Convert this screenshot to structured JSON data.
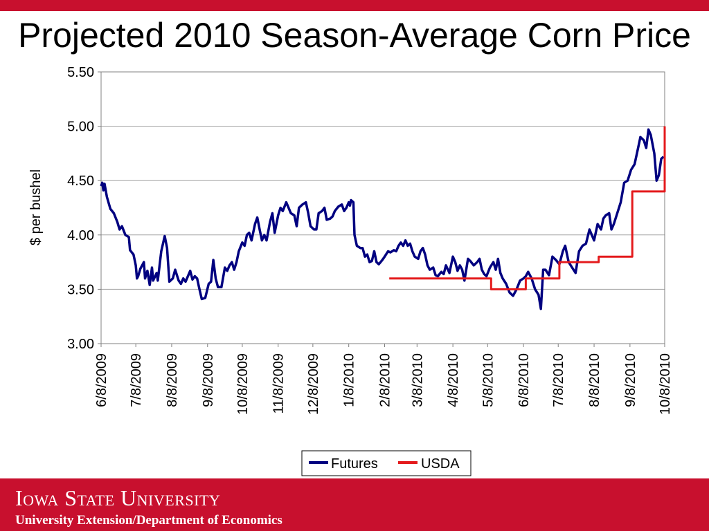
{
  "title": "Projected 2010 Season-Average Corn Price",
  "colors": {
    "brand_red": "#c8102e",
    "futures": "#000080",
    "usda": "#e41a1c"
  },
  "footer": {
    "university": "Iowa State University",
    "department": "University Extension/Department of Economics"
  },
  "chart_data": {
    "type": "line",
    "ylabel": "$ per bushel",
    "xlabel": "",
    "ylim": [
      3.0,
      5.5
    ],
    "yticks": [
      "3.00",
      "3.50",
      "4.00",
      "4.50",
      "5.00",
      "5.50"
    ],
    "xtick_labels": [
      "6/8/2009",
      "7/8/2009",
      "8/8/2009",
      "9/8/2009",
      "10/8/2009",
      "11/8/2009",
      "12/8/2009",
      "1/8/2010",
      "2/8/2010",
      "3/8/2010",
      "4/8/2010",
      "5/8/2010",
      "6/8/2010",
      "7/8/2010",
      "8/8/2010",
      "9/8/2010",
      "10/8/2010"
    ],
    "x_start": "2009-06-08",
    "x_end": "2010-10-08",
    "grid": "horizontal",
    "legend": "bottom",
    "series": [
      {
        "name": "Futures",
        "points": [
          [
            "2009-06-08",
            4.45
          ],
          [
            "2009-06-09",
            4.48
          ],
          [
            "2009-06-10",
            4.41
          ],
          [
            "2009-06-11",
            4.47
          ],
          [
            "2009-06-13",
            4.35
          ],
          [
            "2009-06-16",
            4.24
          ],
          [
            "2009-06-19",
            4.2
          ],
          [
            "2009-06-22",
            4.12
          ],
          [
            "2009-06-24",
            4.05
          ],
          [
            "2009-06-26",
            4.08
          ],
          [
            "2009-06-29",
            4.0
          ],
          [
            "2009-07-02",
            3.98
          ],
          [
            "2009-07-03",
            3.86
          ],
          [
            "2009-07-06",
            3.82
          ],
          [
            "2009-07-08",
            3.72
          ],
          [
            "2009-07-09",
            3.6
          ],
          [
            "2009-07-10",
            3.62
          ],
          [
            "2009-07-12",
            3.69
          ],
          [
            "2009-07-15",
            3.75
          ],
          [
            "2009-07-16",
            3.6
          ],
          [
            "2009-07-18",
            3.67
          ],
          [
            "2009-07-20",
            3.54
          ],
          [
            "2009-07-22",
            3.7
          ],
          [
            "2009-07-23",
            3.58
          ],
          [
            "2009-07-26",
            3.65
          ],
          [
            "2009-07-27",
            3.58
          ],
          [
            "2009-07-30",
            3.85
          ],
          [
            "2009-08-02",
            3.99
          ],
          [
            "2009-08-04",
            3.88
          ],
          [
            "2009-08-06",
            3.57
          ],
          [
            "2009-08-09",
            3.6
          ],
          [
            "2009-08-11",
            3.68
          ],
          [
            "2009-08-14",
            3.58
          ],
          [
            "2009-08-16",
            3.55
          ],
          [
            "2009-08-18",
            3.6
          ],
          [
            "2009-08-20",
            3.57
          ],
          [
            "2009-08-22",
            3.62
          ],
          [
            "2009-08-24",
            3.67
          ],
          [
            "2009-08-26",
            3.59
          ],
          [
            "2009-08-28",
            3.62
          ],
          [
            "2009-08-30",
            3.6
          ],
          [
            "2009-09-01",
            3.5
          ],
          [
            "2009-09-03",
            3.41
          ],
          [
            "2009-09-06",
            3.42
          ],
          [
            "2009-09-09",
            3.55
          ],
          [
            "2009-09-11",
            3.57
          ],
          [
            "2009-09-13",
            3.77
          ],
          [
            "2009-09-15",
            3.6
          ],
          [
            "2009-09-17",
            3.52
          ],
          [
            "2009-09-20",
            3.52
          ],
          [
            "2009-09-23",
            3.7
          ],
          [
            "2009-09-25",
            3.67
          ],
          [
            "2009-09-27",
            3.72
          ],
          [
            "2009-09-29",
            3.75
          ],
          [
            "2009-10-01",
            3.68
          ],
          [
            "2009-10-03",
            3.75
          ],
          [
            "2009-10-05",
            3.85
          ],
          [
            "2009-10-08",
            3.93
          ],
          [
            "2009-10-10",
            3.9
          ],
          [
            "2009-10-12",
            4.0
          ],
          [
            "2009-10-14",
            4.02
          ],
          [
            "2009-10-16",
            3.95
          ],
          [
            "2009-10-19",
            4.1
          ],
          [
            "2009-10-21",
            4.16
          ],
          [
            "2009-10-23",
            4.05
          ],
          [
            "2009-10-25",
            3.95
          ],
          [
            "2009-10-27",
            4.0
          ],
          [
            "2009-10-29",
            3.95
          ],
          [
            "2009-11-01",
            4.12
          ],
          [
            "2009-11-03",
            4.2
          ],
          [
            "2009-11-05",
            4.02
          ],
          [
            "2009-11-08",
            4.18
          ],
          [
            "2009-11-10",
            4.25
          ],
          [
            "2009-11-12",
            4.22
          ],
          [
            "2009-11-15",
            4.3
          ],
          [
            "2009-11-17",
            4.25
          ],
          [
            "2009-11-19",
            4.2
          ],
          [
            "2009-11-22",
            4.18
          ],
          [
            "2009-11-24",
            4.08
          ],
          [
            "2009-11-26",
            4.25
          ],
          [
            "2009-11-29",
            4.28
          ],
          [
            "2009-12-02",
            4.3
          ],
          [
            "2009-12-04",
            4.2
          ],
          [
            "2009-12-06",
            4.08
          ],
          [
            "2009-12-09",
            4.05
          ],
          [
            "2009-12-11",
            4.05
          ],
          [
            "2009-12-13",
            4.2
          ],
          [
            "2009-12-16",
            4.22
          ],
          [
            "2009-12-18",
            4.25
          ],
          [
            "2009-12-20",
            4.14
          ],
          [
            "2009-12-23",
            4.15
          ],
          [
            "2009-12-25",
            4.17
          ],
          [
            "2009-12-27",
            4.22
          ],
          [
            "2009-12-30",
            4.26
          ],
          [
            "2010-01-02",
            4.28
          ],
          [
            "2010-01-04",
            4.22
          ],
          [
            "2010-01-06",
            4.25
          ],
          [
            "2010-01-08",
            4.3
          ],
          [
            "2010-01-09",
            4.27
          ],
          [
            "2010-01-10",
            4.32
          ],
          [
            "2010-01-12",
            4.3
          ],
          [
            "2010-01-13",
            4.0
          ],
          [
            "2010-01-15",
            3.9
          ],
          [
            "2010-01-18",
            3.88
          ],
          [
            "2010-01-20",
            3.88
          ],
          [
            "2010-01-22",
            3.8
          ],
          [
            "2010-01-24",
            3.82
          ],
          [
            "2010-01-26",
            3.75
          ],
          [
            "2010-01-28",
            3.76
          ],
          [
            "2010-01-30",
            3.85
          ],
          [
            "2010-02-01",
            3.75
          ],
          [
            "2010-02-03",
            3.73
          ],
          [
            "2010-02-06",
            3.77
          ],
          [
            "2010-02-08",
            3.8
          ],
          [
            "2010-02-11",
            3.85
          ],
          [
            "2010-02-13",
            3.84
          ],
          [
            "2010-02-16",
            3.86
          ],
          [
            "2010-02-18",
            3.85
          ],
          [
            "2010-02-20",
            3.9
          ],
          [
            "2010-02-22",
            3.93
          ],
          [
            "2010-02-24",
            3.9
          ],
          [
            "2010-02-26",
            3.95
          ],
          [
            "2010-02-28",
            3.9
          ],
          [
            "2010-03-02",
            3.92
          ],
          [
            "2010-03-04",
            3.85
          ],
          [
            "2010-03-06",
            3.8
          ],
          [
            "2010-03-09",
            3.78
          ],
          [
            "2010-03-11",
            3.85
          ],
          [
            "2010-03-13",
            3.88
          ],
          [
            "2010-03-15",
            3.82
          ],
          [
            "2010-03-17",
            3.72
          ],
          [
            "2010-03-19",
            3.68
          ],
          [
            "2010-03-22",
            3.7
          ],
          [
            "2010-03-24",
            3.63
          ],
          [
            "2010-03-26",
            3.62
          ],
          [
            "2010-03-29",
            3.66
          ],
          [
            "2010-03-31",
            3.64
          ],
          [
            "2010-04-02",
            3.72
          ],
          [
            "2010-04-05",
            3.65
          ],
          [
            "2010-04-08",
            3.8
          ],
          [
            "2010-04-10",
            3.75
          ],
          [
            "2010-04-12",
            3.67
          ],
          [
            "2010-04-14",
            3.72
          ],
          [
            "2010-04-16",
            3.68
          ],
          [
            "2010-04-18",
            3.58
          ],
          [
            "2010-04-21",
            3.78
          ],
          [
            "2010-04-23",
            3.76
          ],
          [
            "2010-04-26",
            3.72
          ],
          [
            "2010-04-29",
            3.75
          ],
          [
            "2010-05-01",
            3.78
          ],
          [
            "2010-05-03",
            3.68
          ],
          [
            "2010-05-05",
            3.64
          ],
          [
            "2010-05-07",
            3.62
          ],
          [
            "2010-05-10",
            3.7
          ],
          [
            "2010-05-13",
            3.75
          ],
          [
            "2010-05-15",
            3.68
          ],
          [
            "2010-05-17",
            3.78
          ],
          [
            "2010-05-19",
            3.65
          ],
          [
            "2010-05-21",
            3.6
          ],
          [
            "2010-05-24",
            3.55
          ],
          [
            "2010-05-27",
            3.47
          ],
          [
            "2010-05-30",
            3.44
          ],
          [
            "2010-06-02",
            3.5
          ],
          [
            "2010-06-05",
            3.58
          ],
          [
            "2010-06-08",
            3.6
          ],
          [
            "2010-06-10",
            3.62
          ],
          [
            "2010-06-12",
            3.66
          ],
          [
            "2010-06-15",
            3.6
          ],
          [
            "2010-06-18",
            3.5
          ],
          [
            "2010-06-21",
            3.45
          ],
          [
            "2010-06-23",
            3.32
          ],
          [
            "2010-06-25",
            3.68
          ],
          [
            "2010-06-27",
            3.68
          ],
          [
            "2010-06-30",
            3.63
          ],
          [
            "2010-07-03",
            3.8
          ],
          [
            "2010-07-06",
            3.77
          ],
          [
            "2010-07-09",
            3.73
          ],
          [
            "2010-07-12",
            3.85
          ],
          [
            "2010-07-14",
            3.9
          ],
          [
            "2010-07-17",
            3.75
          ],
          [
            "2010-07-20",
            3.7
          ],
          [
            "2010-07-23",
            3.65
          ],
          [
            "2010-07-26",
            3.85
          ],
          [
            "2010-07-29",
            3.9
          ],
          [
            "2010-08-01",
            3.92
          ],
          [
            "2010-08-04",
            4.05
          ],
          [
            "2010-08-06",
            4.0
          ],
          [
            "2010-08-08",
            3.95
          ],
          [
            "2010-08-11",
            4.1
          ],
          [
            "2010-08-14",
            4.05
          ],
          [
            "2010-08-16",
            4.15
          ],
          [
            "2010-08-18",
            4.18
          ],
          [
            "2010-08-21",
            4.2
          ],
          [
            "2010-08-23",
            4.05
          ],
          [
            "2010-08-25",
            4.1
          ],
          [
            "2010-08-28",
            4.2
          ],
          [
            "2010-08-31",
            4.3
          ],
          [
            "2010-09-03",
            4.48
          ],
          [
            "2010-09-06",
            4.5
          ],
          [
            "2010-09-09",
            4.6
          ],
          [
            "2010-09-12",
            4.65
          ],
          [
            "2010-09-15",
            4.8
          ],
          [
            "2010-09-17",
            4.9
          ],
          [
            "2010-09-20",
            4.87
          ],
          [
            "2010-09-22",
            4.8
          ],
          [
            "2010-09-24",
            4.97
          ],
          [
            "2010-09-26",
            4.92
          ],
          [
            "2010-09-29",
            4.75
          ],
          [
            "2010-10-01",
            4.5
          ],
          [
            "2010-10-03",
            4.55
          ],
          [
            "2010-10-05",
            4.7
          ],
          [
            "2010-10-07",
            4.72
          ]
        ]
      },
      {
        "name": "USDA",
        "step": true,
        "points": [
          [
            "2010-02-12",
            3.6
          ],
          [
            "2010-05-11",
            3.6
          ],
          [
            "2010-05-11",
            3.5
          ],
          [
            "2010-06-10",
            3.5
          ],
          [
            "2010-06-10",
            3.6
          ],
          [
            "2010-07-09",
            3.6
          ],
          [
            "2010-07-09",
            3.75
          ],
          [
            "2010-08-12",
            3.75
          ],
          [
            "2010-08-12",
            3.8
          ],
          [
            "2010-09-10",
            3.8
          ],
          [
            "2010-09-10",
            4.4
          ],
          [
            "2010-10-08",
            4.4
          ],
          [
            "2010-10-08",
            5.0
          ]
        ]
      }
    ]
  }
}
